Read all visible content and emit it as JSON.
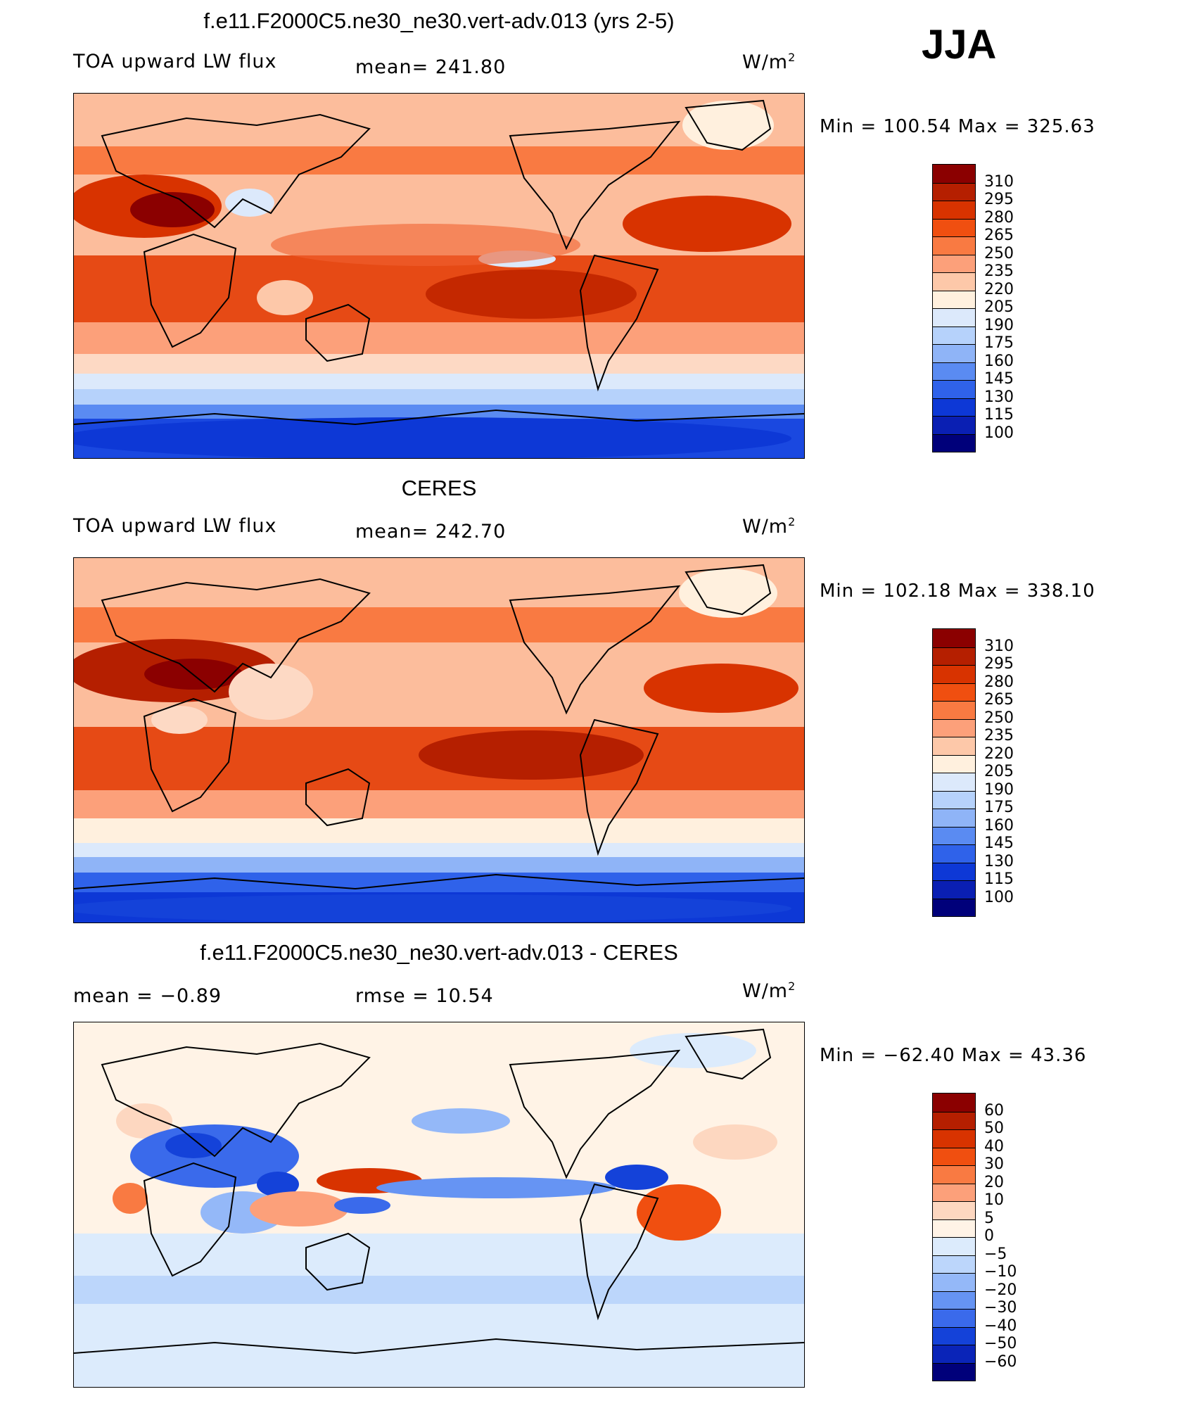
{
  "season": "JJA",
  "panels": [
    {
      "id": "model",
      "title": "f.e11.F2000C5.ne30_ne30.vert-adv.013 (yrs 2-5)",
      "left_label": "TOA upward LW flux",
      "center_label": "mean= 241.80",
      "units": "W/m",
      "units_sup": "2",
      "minmax": "Min = 100.54 Max = 325.63",
      "legend_labels": [
        "310",
        "295",
        "280",
        "265",
        "250",
        "235",
        "220",
        "205",
        "190",
        "175",
        "160",
        "145",
        "130",
        "115",
        "100"
      ],
      "legend_colors": [
        "#8b0000",
        "#b51f00",
        "#d83300",
        "#f04f10",
        "#f97a42",
        "#fca07a",
        "#fdc8a9",
        "#fff0de",
        "#dce9fb",
        "#b6d2fb",
        "#8fb4f7",
        "#5a8bf2",
        "#2f62ea",
        "#0d38d6",
        "#0a1fb3",
        "#00007a"
      ]
    },
    {
      "id": "obs",
      "title": "CERES",
      "left_label": "TOA upward LW flux",
      "center_label": "mean= 242.70",
      "units": "W/m",
      "units_sup": "2",
      "minmax": "Min = 102.18 Max = 338.10",
      "legend_labels": [
        "310",
        "295",
        "280",
        "265",
        "250",
        "235",
        "220",
        "205",
        "190",
        "175",
        "160",
        "145",
        "130",
        "115",
        "100"
      ],
      "legend_colors": [
        "#8b0000",
        "#b51f00",
        "#d83300",
        "#f04f10",
        "#f97a42",
        "#fca07a",
        "#fdc8a9",
        "#fff0de",
        "#dce9fb",
        "#b6d2fb",
        "#8fb4f7",
        "#5a8bf2",
        "#2f62ea",
        "#0d38d6",
        "#0a1fb3",
        "#00007a"
      ]
    },
    {
      "id": "diff",
      "title": "f.e11.F2000C5.ne30_ne30.vert-adv.013 - CERES",
      "left_label": "mean =    −0.89",
      "center_label": "rmse =    10.54",
      "units": "W/m",
      "units_sup": "2",
      "minmax": "Min = −62.40 Max =    43.36",
      "legend_labels": [
        "60",
        "50",
        "40",
        "30",
        "20",
        "10",
        "5",
        "0",
        "−5",
        "−10",
        "−20",
        "−30",
        "−40",
        "−50",
        "−60"
      ],
      "legend_colors": [
        "#8b0000",
        "#b51f00",
        "#d83300",
        "#f04f10",
        "#f97a42",
        "#fca07a",
        "#fdd7c0",
        "#fff3e6",
        "#dcebfc",
        "#bcd6fb",
        "#94b8f8",
        "#6694f3",
        "#3a6aeb",
        "#1442d9",
        "#0a24b8",
        "#00007a"
      ]
    }
  ]
}
